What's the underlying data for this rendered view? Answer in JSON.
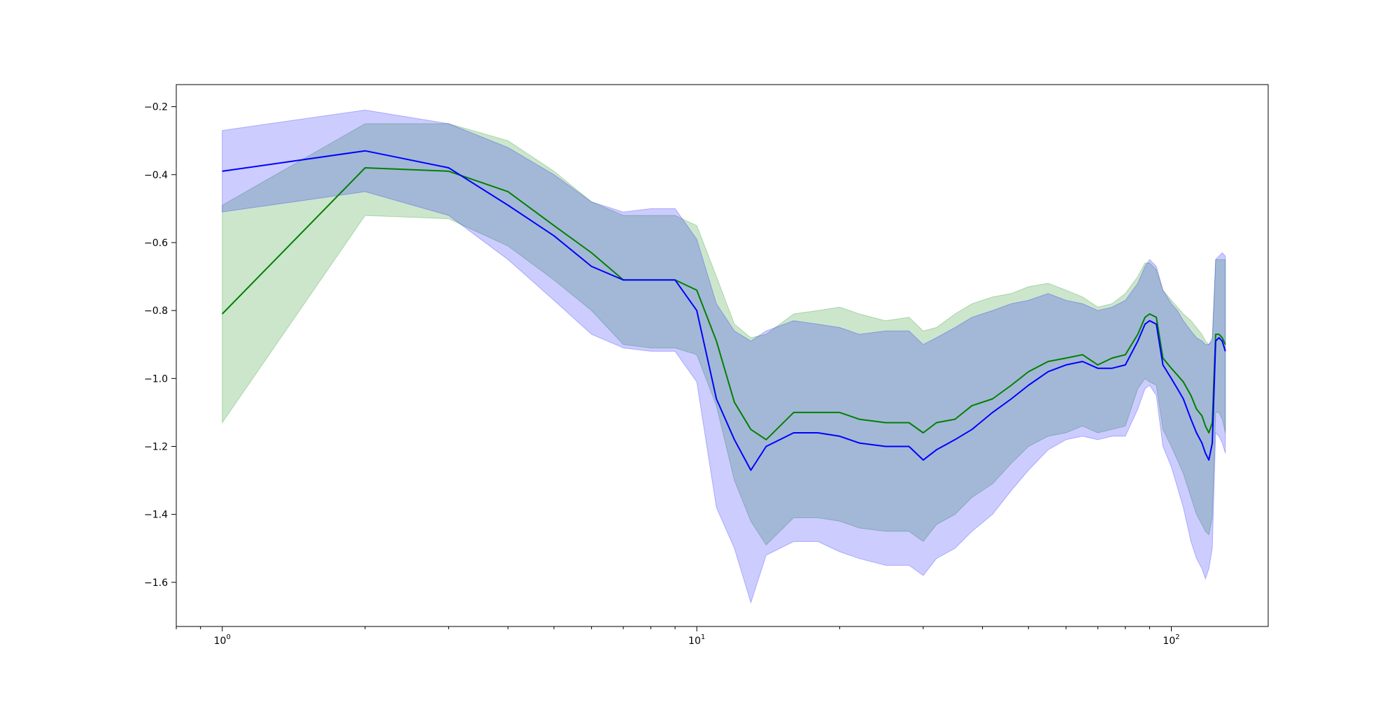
{
  "chart_data": {
    "type": "line",
    "title": "",
    "xlabel": "",
    "ylabel": "",
    "x_scale": "log",
    "xlim": [
      0.8,
      160
    ],
    "ylim": [
      -1.73,
      -0.135
    ],
    "grid": false,
    "x_ticks": [
      {
        "value": 1,
        "base": "10",
        "exp": "0"
      },
      {
        "value": 10,
        "base": "10",
        "exp": "1"
      },
      {
        "value": 100,
        "base": "10",
        "exp": "2"
      }
    ],
    "y_ticks": [
      {
        "value": -0.2,
        "label": "−0.2"
      },
      {
        "value": -0.4,
        "label": "−0.4"
      },
      {
        "value": -0.6,
        "label": "−0.6"
      },
      {
        "value": -0.8,
        "label": "−0.8"
      },
      {
        "value": -1.0,
        "label": "−1.0"
      },
      {
        "value": -1.2,
        "label": "−1.2"
      },
      {
        "value": -1.4,
        "label": "−1.4"
      },
      {
        "value": -1.6,
        "label": "−1.6"
      }
    ],
    "series": [
      {
        "color": "#008000",
        "band_color": "#008000",
        "band_opacity": 0.2,
        "x": [
          1,
          2,
          3,
          4,
          5,
          6,
          7,
          8,
          9,
          10,
          11,
          12,
          13,
          14,
          16,
          18,
          20,
          22,
          25,
          28,
          30,
          32,
          35,
          38,
          42,
          46,
          50,
          55,
          60,
          65,
          70,
          75,
          80,
          85,
          88,
          90,
          93,
          96,
          100,
          103,
          106,
          110,
          113,
          116,
          118,
          120,
          122,
          124,
          126,
          128,
          130
        ],
        "mean": [
          -0.81,
          -0.38,
          -0.39,
          -0.45,
          -0.55,
          -0.63,
          -0.71,
          -0.71,
          -0.71,
          -0.74,
          -0.89,
          -1.07,
          -1.15,
          -1.18,
          -1.1,
          -1.1,
          -1.1,
          -1.12,
          -1.13,
          -1.13,
          -1.16,
          -1.13,
          -1.12,
          -1.08,
          -1.06,
          -1.02,
          -0.98,
          -0.95,
          -0.94,
          -0.93,
          -0.96,
          -0.94,
          -0.93,
          -0.87,
          -0.82,
          -0.81,
          -0.82,
          -0.94,
          -0.97,
          -0.99,
          -1.01,
          -1.05,
          -1.09,
          -1.11,
          -1.14,
          -1.16,
          -1.13,
          -0.87,
          -0.87,
          -0.88,
          -0.9
        ],
        "upper": [
          -0.49,
          -0.25,
          -0.25,
          -0.3,
          -0.39,
          -0.48,
          -0.52,
          -0.52,
          -0.52,
          -0.55,
          -0.7,
          -0.84,
          -0.88,
          -0.87,
          -0.81,
          -0.8,
          -0.79,
          -0.81,
          -0.83,
          -0.82,
          -0.86,
          -0.85,
          -0.81,
          -0.78,
          -0.76,
          -0.75,
          -0.73,
          -0.72,
          -0.74,
          -0.76,
          -0.79,
          -0.78,
          -0.75,
          -0.7,
          -0.66,
          -0.66,
          -0.68,
          -0.74,
          -0.77,
          -0.79,
          -0.81,
          -0.83,
          -0.85,
          -0.87,
          -0.89,
          -0.9,
          -0.89,
          -0.65,
          -0.65,
          -0.65,
          -0.65
        ],
        "lower": [
          -1.13,
          -0.52,
          -0.53,
          -0.61,
          -0.71,
          -0.8,
          -0.9,
          -0.91,
          -0.91,
          -0.93,
          -1.08,
          -1.3,
          -1.42,
          -1.49,
          -1.41,
          -1.41,
          -1.42,
          -1.44,
          -1.45,
          -1.45,
          -1.48,
          -1.43,
          -1.4,
          -1.35,
          -1.31,
          -1.25,
          -1.2,
          -1.17,
          -1.16,
          -1.14,
          -1.16,
          -1.15,
          -1.14,
          -1.03,
          -1.0,
          -1.01,
          -1.02,
          -1.15,
          -1.2,
          -1.24,
          -1.28,
          -1.35,
          -1.4,
          -1.43,
          -1.45,
          -1.46,
          -1.41,
          -1.1,
          -1.1,
          -1.12,
          -1.16
        ]
      },
      {
        "color": "#0000ff",
        "band_color": "#0000ff",
        "band_opacity": 0.2,
        "x": [
          1,
          2,
          3,
          4,
          5,
          6,
          7,
          8,
          9,
          10,
          11,
          12,
          13,
          14,
          16,
          18,
          20,
          22,
          25,
          28,
          30,
          32,
          35,
          38,
          42,
          46,
          50,
          55,
          60,
          65,
          70,
          75,
          80,
          85,
          88,
          90,
          93,
          96,
          100,
          103,
          106,
          110,
          113,
          116,
          118,
          120,
          122,
          124,
          126,
          128,
          130
        ],
        "mean": [
          -0.39,
          -0.33,
          -0.38,
          -0.49,
          -0.58,
          -0.67,
          -0.71,
          -0.71,
          -0.71,
          -0.8,
          -1.06,
          -1.18,
          -1.27,
          -1.2,
          -1.16,
          -1.16,
          -1.17,
          -1.19,
          -1.2,
          -1.2,
          -1.24,
          -1.21,
          -1.18,
          -1.15,
          -1.1,
          -1.06,
          -1.02,
          -0.98,
          -0.96,
          -0.95,
          -0.97,
          -0.97,
          -0.96,
          -0.89,
          -0.84,
          -0.83,
          -0.84,
          -0.96,
          -1.0,
          -1.03,
          -1.06,
          -1.12,
          -1.16,
          -1.19,
          -1.22,
          -1.24,
          -1.19,
          -0.89,
          -0.88,
          -0.89,
          -0.92
        ],
        "upper": [
          -0.27,
          -0.21,
          -0.25,
          -0.32,
          -0.4,
          -0.48,
          -0.51,
          -0.5,
          -0.5,
          -0.59,
          -0.78,
          -0.86,
          -0.89,
          -0.86,
          -0.83,
          -0.84,
          -0.85,
          -0.87,
          -0.86,
          -0.86,
          -0.9,
          -0.88,
          -0.85,
          -0.82,
          -0.8,
          -0.78,
          -0.77,
          -0.75,
          -0.77,
          -0.78,
          -0.8,
          -0.79,
          -0.77,
          -0.72,
          -0.67,
          -0.65,
          -0.67,
          -0.74,
          -0.78,
          -0.8,
          -0.83,
          -0.86,
          -0.88,
          -0.89,
          -0.9,
          -0.9,
          -0.88,
          -0.65,
          -0.64,
          -0.63,
          -0.64
        ],
        "lower": [
          -0.51,
          -0.45,
          -0.52,
          -0.65,
          -0.77,
          -0.87,
          -0.91,
          -0.92,
          -0.92,
          -1.01,
          -1.38,
          -1.5,
          -1.66,
          -1.52,
          -1.48,
          -1.48,
          -1.51,
          -1.53,
          -1.55,
          -1.55,
          -1.58,
          -1.53,
          -1.5,
          -1.45,
          -1.4,
          -1.33,
          -1.27,
          -1.21,
          -1.18,
          -1.17,
          -1.18,
          -1.17,
          -1.17,
          -1.09,
          -1.03,
          -1.02,
          -1.05,
          -1.2,
          -1.26,
          -1.32,
          -1.38,
          -1.48,
          -1.53,
          -1.56,
          -1.59,
          -1.56,
          -1.5,
          -1.16,
          -1.17,
          -1.19,
          -1.22
        ]
      }
    ]
  }
}
